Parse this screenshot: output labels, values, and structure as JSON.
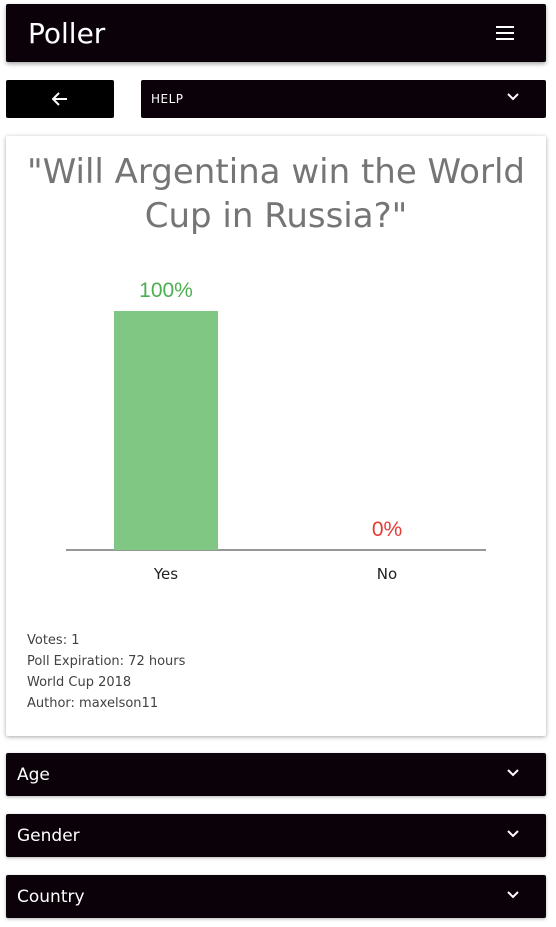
{
  "header": {
    "app_title": "Poller",
    "menu_icon": "hamburger-menu-icon"
  },
  "toolbar": {
    "back_icon": "arrow-left-icon",
    "help_label": "HELP",
    "help_icon": "chevron-down-icon"
  },
  "poll": {
    "question": "\"Will Argentina win the World Cup in Russia?\"",
    "meta": {
      "votes": "Votes: 1",
      "expiration": "Poll Expiration: 72 hours",
      "category": "World Cup 2018",
      "author": "Author: maxelson11"
    }
  },
  "chart_data": {
    "type": "bar",
    "categories": [
      "Yes",
      "No"
    ],
    "values": [
      100,
      0
    ],
    "value_labels": [
      "100%",
      "0%"
    ],
    "ylim": [
      0,
      100
    ],
    "colors": {
      "bar": "#81c784",
      "label_high": "#4caf50",
      "label_low": "#e53935",
      "axis": "#757575"
    }
  },
  "filters": {
    "age": {
      "label": "Age"
    },
    "gender": {
      "label": "Gender"
    },
    "country": {
      "label": "Country"
    }
  }
}
